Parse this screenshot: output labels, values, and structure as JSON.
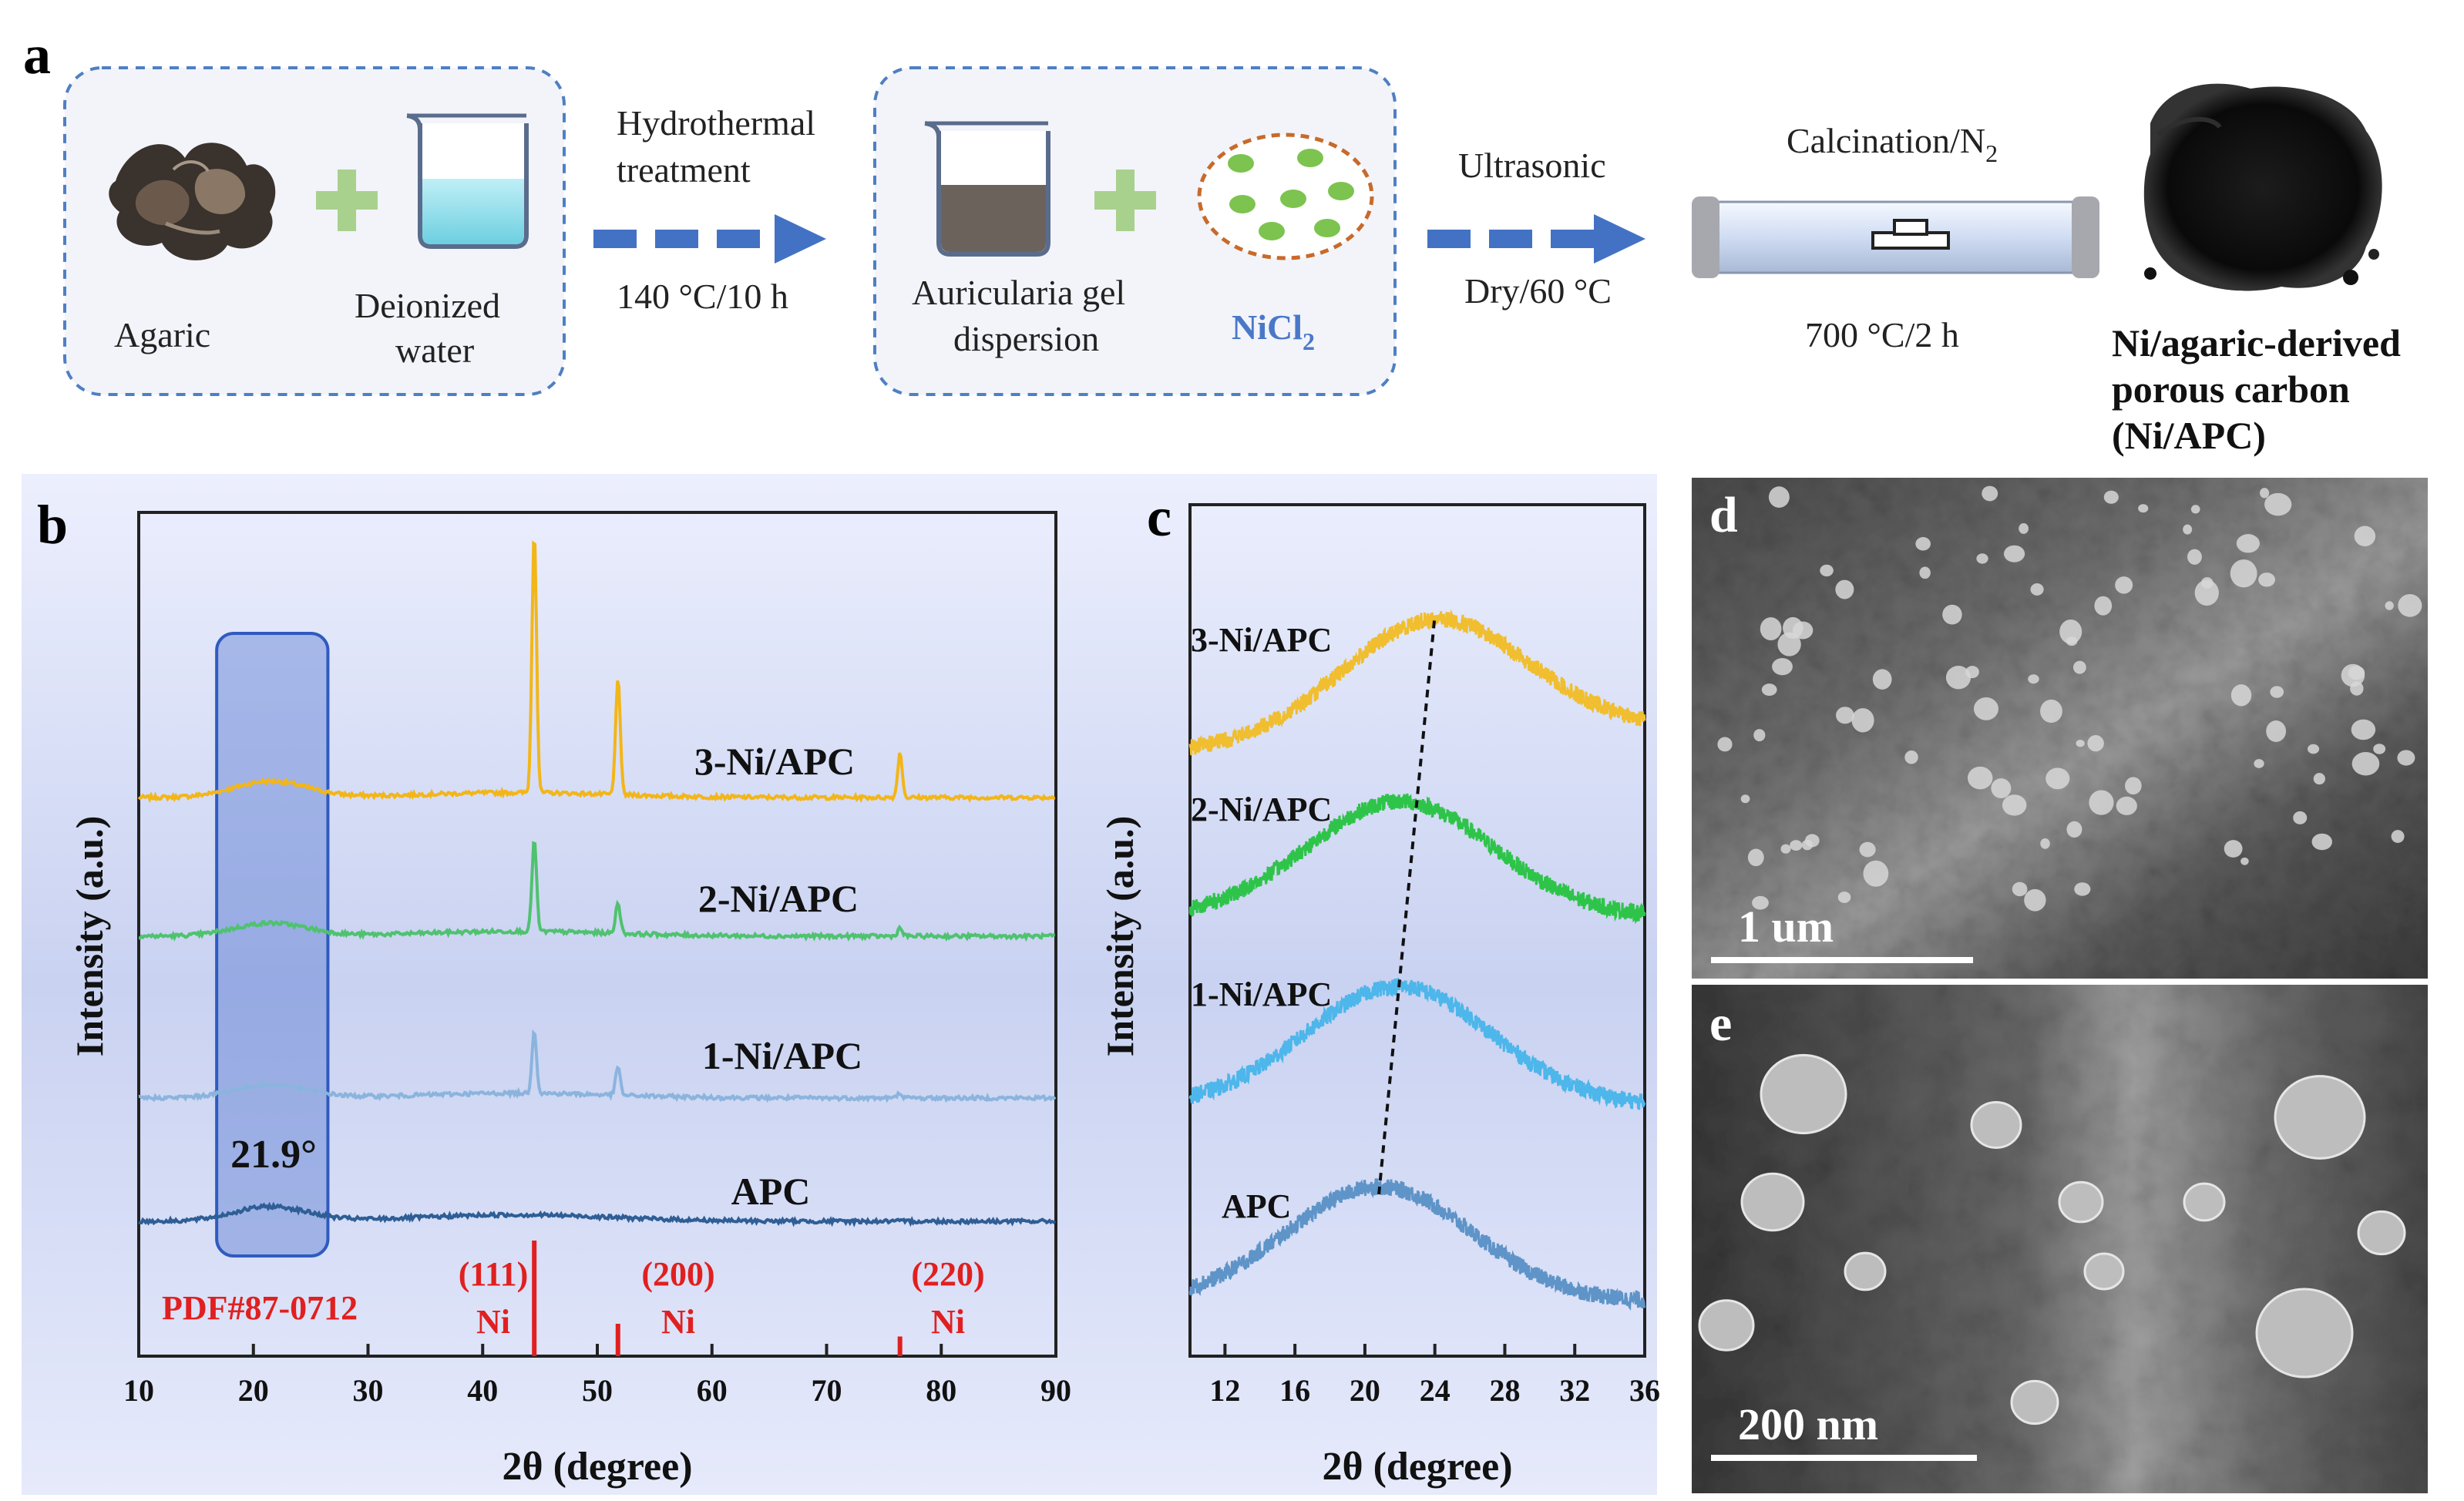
{
  "panel_a": {
    "label": "a",
    "agaric_label": "Agaric",
    "water_label_1": "Deionized",
    "water_label_2": "water",
    "step1_top_1": "Hydrothermal",
    "step1_top_2": "treatment",
    "step1_bottom": "140 °C/10 h",
    "gel_label_1": "Auricularia gel",
    "gel_label_2": "dispersion",
    "nicl_base": "NiCl",
    "nicl_sub": "2",
    "step2_top": "Ultrasonic",
    "step2_bottom": "Dry/60 °C",
    "calc_base": "Calcination/N",
    "calc_sub": "2",
    "calc_bottom": "700 °C/2 h",
    "product_1": "Ni/agaric-derived",
    "product_2": "porous carbon",
    "product_3": "(Ni/APC)"
  },
  "panel_b": {
    "label": "b",
    "xlabel": "2θ (degree)",
    "ylabel": "Intensity (a.u.)",
    "xticks": [
      "10",
      "20",
      "30",
      "40",
      "50",
      "60",
      "70",
      "80",
      "90"
    ],
    "highlight_label": "21.9°",
    "pdf_label": "PDF#87-0712",
    "ref_111": "(111)",
    "ref_200": "(200)",
    "ref_220": "(220)",
    "ref_ni": "Ni"
  },
  "panel_c": {
    "label": "c",
    "xlabel": "2θ (degree)",
    "ylabel": "Intensity (a.u.)",
    "xticks": [
      "12",
      "16",
      "20",
      "24",
      "28",
      "32",
      "36"
    ]
  },
  "panel_d": {
    "label": "d",
    "scale": "1 um"
  },
  "panel_e": {
    "label": "e",
    "scale": "200 nm"
  },
  "chart_data": [
    {
      "type": "line",
      "panel": "b",
      "title": "",
      "xlabel": "2θ (degree)",
      "ylabel": "Intensity (a.u.)",
      "xlim": [
        10,
        90
      ],
      "highlight_range": [
        16.8,
        26.5
      ],
      "highlight_annotation": "21.9°",
      "series": [
        {
          "name": "3-Ni/APC",
          "color": "#F2B619",
          "offset": 3,
          "peaks": [
            [
              44.5,
              1.0
            ],
            [
              51.8,
              0.45
            ],
            [
              76.4,
              0.17
            ]
          ],
          "hump": 0.1
        },
        {
          "name": "2-Ni/APC",
          "color": "#4FC26F",
          "offset": 2,
          "peaks": [
            [
              44.5,
              0.35
            ],
            [
              51.8,
              0.12
            ],
            [
              76.4,
              0.03
            ]
          ],
          "hump": 0.08
        },
        {
          "name": "1-Ni/APC",
          "color": "#8BB4DD",
          "offset": 1,
          "peaks": [
            [
              44.5,
              0.24
            ],
            [
              51.8,
              0.11
            ],
            [
              76.4,
              0.02
            ]
          ],
          "hump": 0.08
        },
        {
          "name": "APC",
          "color": "#2E5E95",
          "offset": 0,
          "peaks": [],
          "hump": 0.09
        }
      ],
      "reference": {
        "name": "PDF#87-0712",
        "lines": [
          {
            "x": 44.5,
            "rel": 1.0,
            "hkl": "(111)",
            "phase": "Ni"
          },
          {
            "x": 51.8,
            "rel": 0.28,
            "hkl": "(200)",
            "phase": "Ni"
          },
          {
            "x": 76.4,
            "rel": 0.17,
            "hkl": "(220)",
            "phase": "Ni"
          }
        ]
      }
    },
    {
      "type": "line",
      "panel": "c",
      "title": "",
      "xlabel": "2θ (degree)",
      "ylabel": "Intensity (a.u.)",
      "xlim": [
        10,
        36
      ],
      "series": [
        {
          "name": "3-Ni/APC",
          "color": "#F0BE2E",
          "peak": 24.0,
          "offset": 3
        },
        {
          "name": "2-Ni/APC",
          "color": "#2EC44A",
          "peak": 22.0,
          "offset": 2
        },
        {
          "name": "1-Ni/APC",
          "color": "#4DB6EA",
          "peak": 21.9,
          "offset": 1
        },
        {
          "name": "APC",
          "color": "#5E94C8",
          "peak": 20.8,
          "offset": 0
        }
      ],
      "trend_line": {
        "from": [
          20.8,
          0
        ],
        "to": [
          24.0,
          3
        ]
      }
    }
  ]
}
